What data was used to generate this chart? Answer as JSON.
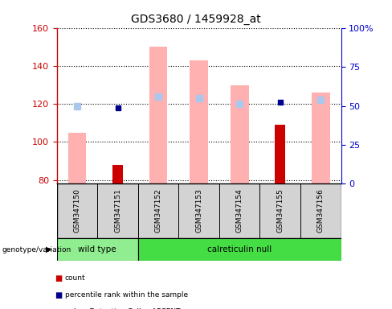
{
  "title": "GDS3680 / 1459928_at",
  "samples": [
    "GSM347150",
    "GSM347151",
    "GSM347152",
    "GSM347153",
    "GSM347154",
    "GSM347155",
    "GSM347156"
  ],
  "ylim_left": [
    78,
    160
  ],
  "ylim_right": [
    0,
    100
  ],
  "yticks_left": [
    80,
    100,
    120,
    140,
    160
  ],
  "yticks_right": [
    0,
    25,
    50,
    75,
    100
  ],
  "ytick_labels_right": [
    "0",
    "25",
    "50",
    "75",
    "100%"
  ],
  "pink_bar_values": [
    105,
    0,
    150,
    143,
    130,
    0,
    126
  ],
  "dark_red_bar_values": [
    0,
    88,
    0,
    0,
    0,
    109,
    0
  ],
  "blue_square_values": [
    0,
    118,
    0,
    0,
    0,
    121,
    0
  ],
  "light_blue_square_values": [
    119,
    0,
    124,
    123,
    120,
    0,
    122
  ],
  "pink_color": "#ffb0b0",
  "light_blue_color": "#aac8ee",
  "dark_red_color": "#cc0000",
  "dark_blue_color": "#00008b",
  "left_axis_color": "#cc0000",
  "right_axis_color": "#0000cc",
  "sample_bg_color": "#d3d3d3",
  "wt_color": "#90ee90",
  "cn_color": "#44dd44",
  "bg_color": "#ffffff"
}
